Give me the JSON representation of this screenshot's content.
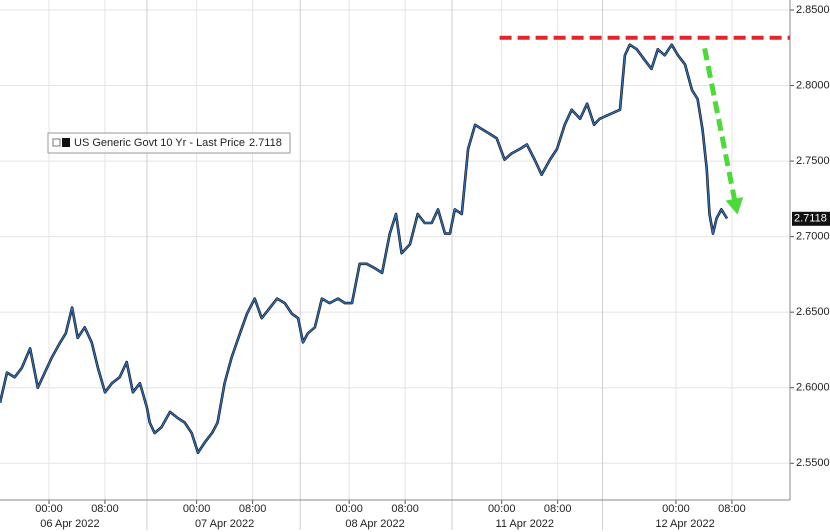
{
  "chart_data": {
    "type": "line",
    "x": [
      -7,
      -6,
      -4.9,
      -3.9,
      -2.7,
      -1.6,
      -0.6,
      0.4,
      1.6,
      2.4,
      3.3,
      4.1,
      5.1,
      6.1,
      7,
      8,
      9,
      10.1,
      11.1,
      12,
      13,
      14,
      14.4,
      15.1,
      16.1,
      17.3,
      18.4,
      19.4,
      20.4,
      21.3,
      22.3,
      23.3,
      24.1,
      25.1,
      26.1,
      27.3,
      28.3,
      29.4,
      30.4,
      31.6,
      32.6,
      33.7,
      34.7,
      35.6,
      36.3,
      37,
      38,
      39,
      40.1,
      41.3,
      42.3,
      43.3,
      44.4,
      45.4,
      46.6,
      47.6,
      48.7,
      49.6,
      50.4,
      51.6,
      52.7,
      53.7,
      54.7,
      55.6,
      56.6,
      57.3,
      58,
      59,
      59.9,
      60.9,
      61.9,
      63,
      64,
      65.1,
      66.1,
      67.3,
      68.3,
      69.4,
      70.4,
      71.6,
      72.6,
      73.7,
      74.7,
      75.9,
      76.9,
      77.9,
      78.7,
      81.6,
      82.3,
      83,
      84,
      85.1,
      86.1,
      87,
      88,
      89,
      89.9,
      90.9,
      91.9,
      92.7,
      93.4,
      94,
      94.4,
      94.9,
      95.4,
      96.1,
      96.9
    ],
    "series": [
      {
        "name": "US Generic Govt 10 Yr - Last Price",
        "color": "#2f6db5",
        "last_value": 2.7118,
        "values": [
          2.59,
          2.61,
          2.607,
          2.613,
          2.626,
          2.6,
          2.61,
          2.62,
          2.63,
          2.636,
          2.653,
          2.633,
          2.64,
          2.63,
          2.613,
          2.597,
          2.603,
          2.607,
          2.617,
          2.597,
          2.603,
          2.587,
          2.577,
          2.57,
          2.574,
          2.584,
          2.58,
          2.577,
          2.57,
          2.557,
          2.564,
          2.57,
          2.577,
          2.603,
          2.62,
          2.636,
          2.649,
          2.659,
          2.646,
          2.653,
          2.659,
          2.656,
          2.649,
          2.646,
          2.63,
          2.636,
          2.64,
          2.659,
          2.656,
          2.659,
          2.656,
          2.656,
          2.682,
          2.682,
          2.679,
          2.676,
          2.702,
          2.715,
          2.689,
          2.695,
          2.715,
          2.709,
          2.709,
          2.718,
          2.702,
          2.702,
          2.718,
          2.715,
          2.758,
          2.774,
          2.771,
          2.768,
          2.765,
          2.751,
          2.755,
          2.758,
          2.761,
          2.751,
          2.741,
          2.751,
          2.758,
          2.774,
          2.784,
          2.778,
          2.788,
          2.774,
          2.778,
          2.784,
          2.82,
          2.827,
          2.824,
          2.817,
          2.811,
          2.824,
          2.82,
          2.827,
          2.82,
          2.814,
          2.797,
          2.791,
          2.771,
          2.745,
          2.715,
          2.702,
          2.712,
          2.718,
          2.712
        ]
      }
    ],
    "xlim": [
      -7,
      105.9
    ],
    "ylim": [
      2.5257,
      2.8566
    ],
    "yticks": [
      {
        "value": 2.55,
        "label": "2.5500"
      },
      {
        "value": 2.6,
        "label": "2.6000"
      },
      {
        "value": 2.65,
        "label": "2.6500"
      },
      {
        "value": 2.7,
        "label": "2.7000"
      },
      {
        "value": 2.75,
        "label": "2.7500"
      },
      {
        "value": 2.8,
        "label": "2.8000"
      },
      {
        "value": 2.85,
        "label": "2.8500"
      }
    ],
    "xticks": [
      {
        "value": 0,
        "label": "00:00"
      },
      {
        "value": 8,
        "label": "08:00"
      },
      {
        "value": 21.1,
        "label": "00:00"
      },
      {
        "value": 29.1,
        "label": "08:00"
      },
      {
        "value": 42.9,
        "label": "00:00"
      },
      {
        "value": 50.9,
        "label": "08:00"
      },
      {
        "value": 64.7,
        "label": "00:00"
      },
      {
        "value": 72.7,
        "label": "08:00"
      },
      {
        "value": 89.6,
        "label": "00:00"
      },
      {
        "value": 97.6,
        "label": "08:00"
      }
    ],
    "date_labels": [
      {
        "value": 3,
        "label": "06 Apr 2022"
      },
      {
        "value": 25.1,
        "label": "07 Apr 2022"
      },
      {
        "value": 46.6,
        "label": "08 Apr 2022"
      },
      {
        "value": 68,
        "label": "11 Apr 2022"
      },
      {
        "value": 90.9,
        "label": "12 Apr 2022"
      }
    ],
    "session_breaks": [
      14,
      35.9,
      57.6,
      79.1
    ],
    "grid": true,
    "annotations": [
      {
        "kind": "hline",
        "value": 2.8316,
        "x_start": 64.4,
        "color": "#e3242b"
      },
      {
        "kind": "arrow",
        "from": [
          93.7,
          2.8246
        ],
        "to": [
          98.4,
          2.7146
        ],
        "color": "#4cd93a"
      }
    ]
  }
}
